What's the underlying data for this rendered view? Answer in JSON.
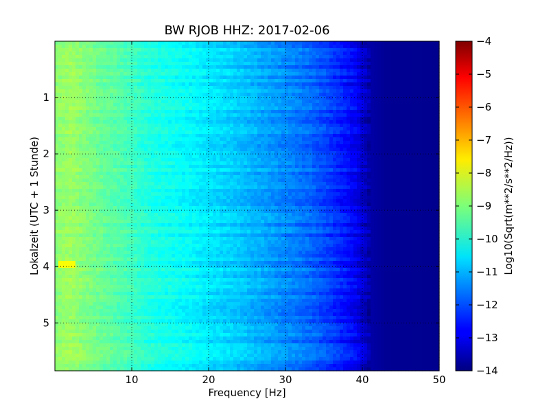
{
  "chart_data": {
    "type": "heatmap",
    "title": "BW RJOB HHZ: 2017-02-06",
    "xlabel": "Frequency [Hz]",
    "ylabel": "Lokalzeit (UTC + 1 Stunde)",
    "xlim": [
      0,
      50
    ],
    "ylim": [
      5.85,
      0.0
    ],
    "y_inverted": true,
    "grid": true,
    "xticks": [
      10,
      20,
      30,
      40,
      50
    ],
    "yticks": [
      1,
      2,
      3,
      4,
      5
    ],
    "colorbar": {
      "label": "Log10(Sqrt(m**2/s**2/Hz))",
      "range": [
        -14,
        -4
      ],
      "ticks": [
        -4,
        -5,
        -6,
        -7,
        -8,
        -9,
        -10,
        -11,
        -12,
        -13,
        -14
      ],
      "colormap": "jet"
    },
    "spectrum_profile": {
      "frequency_hz": [
        0,
        2,
        5,
        8,
        10,
        12,
        15,
        18,
        20,
        23,
        25,
        28,
        30,
        33,
        35,
        37,
        39,
        40,
        41,
        43,
        50
      ],
      "log10_amplitude": [
        -8.9,
        -8.7,
        -9.1,
        -9.4,
        -9.6,
        -9.9,
        -10.1,
        -10.3,
        -10.5,
        -10.7,
        -10.9,
        -11.2,
        -11.4,
        -11.7,
        -12.0,
        -12.4,
        -12.8,
        -13.2,
        -13.6,
        -13.8,
        -13.85
      ]
    },
    "notable_features": {
      "peak_time_hours": 3.95,
      "peak_freq_range_hz": [
        0.5,
        2.5
      ],
      "peak_value": -7.8
    }
  }
}
